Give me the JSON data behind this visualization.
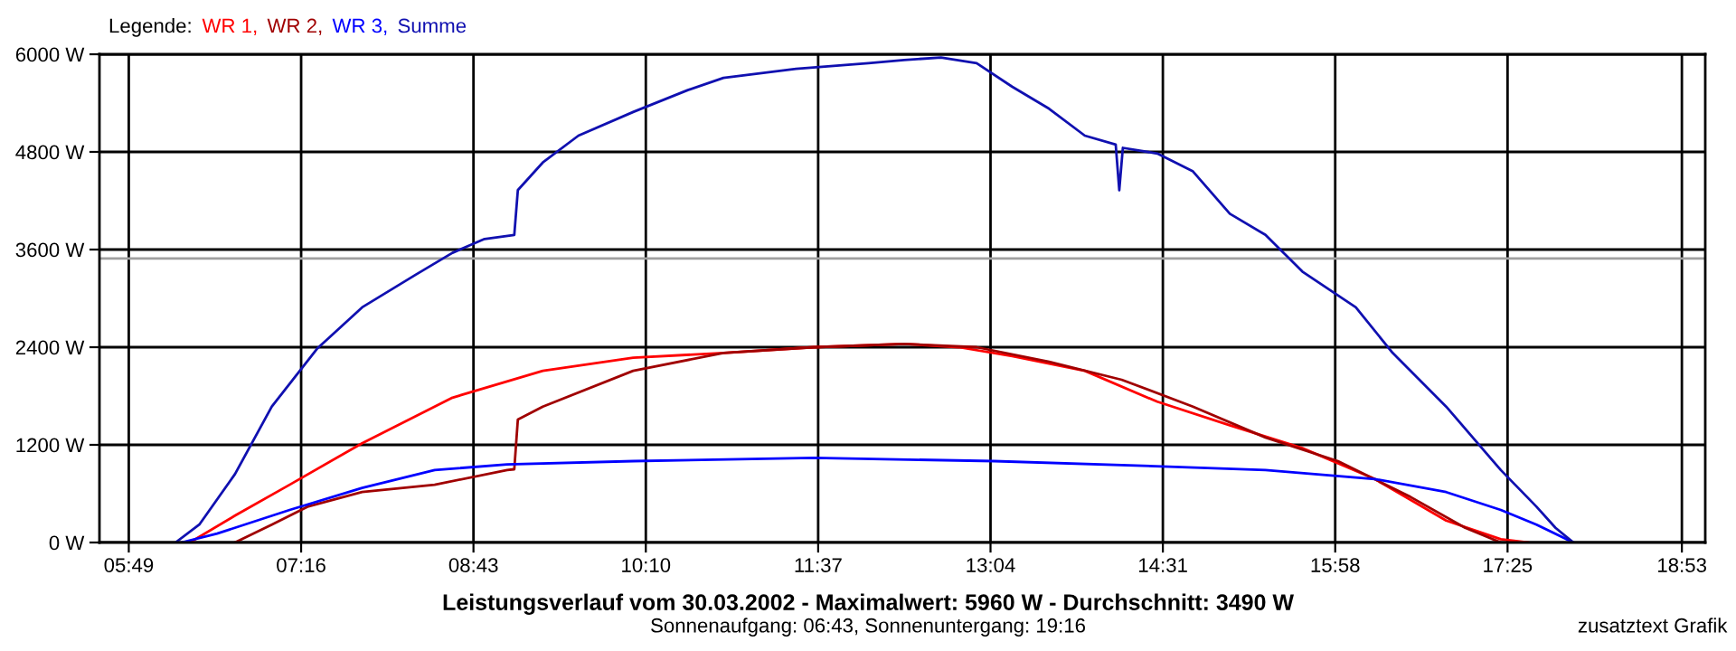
{
  "chart_data": {
    "type": "line",
    "title": "Leistungsverlauf vom 30.03.2002 - Maximalwert: 5960 W - Durchschnitt: 3490 W",
    "subtitle": "Sonnenaufgang: 06:43, Sonnenuntergang: 19:16",
    "legend_title": "Legende:",
    "annotations": [
      "zusatztext Grafik"
    ],
    "xlim": [
      5.57,
      19.08
    ],
    "xticks": [
      {
        "value": 5.8167,
        "label": "05:49"
      },
      {
        "value": 7.2667,
        "label": "07:16"
      },
      {
        "value": 8.7167,
        "label": "08:43"
      },
      {
        "value": 10.1667,
        "label": "10:10"
      },
      {
        "value": 11.6167,
        "label": "11:37"
      },
      {
        "value": 13.0667,
        "label": "13:04"
      },
      {
        "value": 14.5167,
        "label": "14:31"
      },
      {
        "value": 15.9667,
        "label": "15:58"
      },
      {
        "value": 17.4167,
        "label": "17:25"
      },
      {
        "value": 18.8833,
        "label": "18:53"
      }
    ],
    "ylim": [
      0,
      6000
    ],
    "yticks": [
      {
        "value": 0,
        "label": "0 W"
      },
      {
        "value": 1200,
        "label": "1200 W"
      },
      {
        "value": 2400,
        "label": "2400 W"
      },
      {
        "value": 3600,
        "label": "3600 W"
      },
      {
        "value": 4800,
        "label": "4800 W"
      },
      {
        "value": 6000,
        "label": "6000 W"
      }
    ],
    "grid": true,
    "legend": "top left",
    "marker": "none",
    "line_style": "solid",
    "ref_lines": [
      {
        "axis": "y",
        "value": 3490,
        "color": "#a0a0a0"
      }
    ],
    "series": [
      {
        "name": "WR 1,",
        "color": "#ff0000",
        "x": [
          6.33,
          6.71,
          7.17,
          7.78,
          8.54,
          9.3,
          10.06,
          10.82,
          11.58,
          12.34,
          12.8,
          13.25,
          13.86,
          14.47,
          15.08,
          15.69,
          16.3,
          16.9,
          17.36,
          17.59
        ],
        "values": [
          0,
          330,
          710,
          1220,
          1780,
          2110,
          2270,
          2330,
          2400,
          2440,
          2400,
          2290,
          2110,
          1730,
          1440,
          1160,
          780,
          270,
          40,
          0
        ]
      },
      {
        "name": "WR 2,",
        "color": "#a00000",
        "x": [
          6.71,
          7.02,
          7.32,
          7.78,
          8.39,
          9.0,
          9.06,
          9.09,
          9.3,
          10.06,
          10.82,
          11.58,
          12.34,
          12.95,
          13.56,
          14.17,
          14.77,
          15.38,
          15.99,
          16.6,
          17.06,
          17.36
        ],
        "values": [
          0,
          220,
          440,
          620,
          710,
          890,
          900,
          1510,
          1670,
          2110,
          2330,
          2400,
          2440,
          2400,
          2220,
          2000,
          1670,
          1290,
          1000,
          560,
          180,
          0
        ]
      },
      {
        "name": "WR 3,",
        "color": "#0000ff",
        "x": [
          6.26,
          6.56,
          7.17,
          7.78,
          8.39,
          9.0,
          10.06,
          11.58,
          13.1,
          14.62,
          15.38,
          16.3,
          16.9,
          17.36,
          17.66,
          17.97
        ],
        "values": [
          0,
          110,
          400,
          670,
          890,
          960,
          1000,
          1040,
          1000,
          930,
          890,
          780,
          620,
          400,
          220,
          0
        ]
      },
      {
        "name": "Summe",
        "color": "#1010b0",
        "x": [
          6.21,
          6.41,
          6.71,
          7.02,
          7.4,
          7.78,
          8.23,
          8.54,
          8.81,
          9.06,
          9.09,
          9.3,
          9.6,
          10.06,
          10.52,
          10.82,
          11.43,
          12.04,
          12.34,
          12.65,
          12.95,
          13.25,
          13.56,
          13.86,
          14.12,
          14.15,
          14.18,
          14.47,
          14.77,
          15.08,
          15.38,
          15.69,
          16.14,
          16.45,
          16.9,
          17.36,
          17.66,
          17.82,
          17.97
        ],
        "values": [
          0,
          220,
          840,
          1670,
          2380,
          2890,
          3290,
          3560,
          3730,
          3780,
          4330,
          4670,
          5000,
          5290,
          5560,
          5710,
          5820,
          5890,
          5930,
          5960,
          5890,
          5600,
          5330,
          5000,
          4890,
          4330,
          4850,
          4780,
          4560,
          4040,
          3780,
          3330,
          2890,
          2330,
          1670,
          890,
          440,
          180,
          0
        ]
      }
    ]
  }
}
